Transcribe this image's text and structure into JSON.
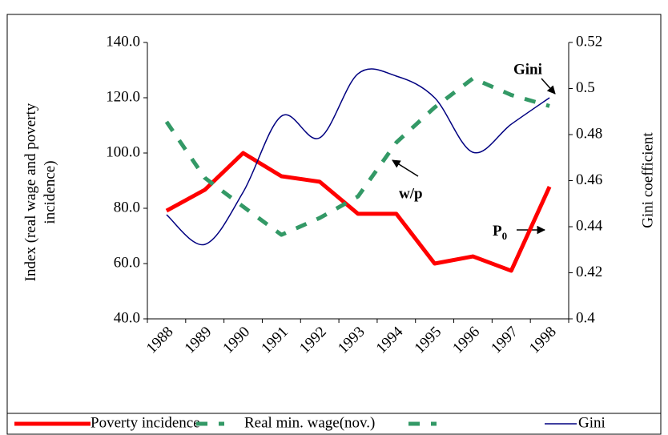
{
  "chart_data": {
    "type": "line",
    "categories": [
      "1988",
      "1989",
      "1990",
      "1991",
      "1992",
      "1993",
      "1994",
      "1995",
      "1996",
      "1997",
      "1998"
    ],
    "y_label": "Index (real wage and poverty incidence)",
    "y2_label": "Gini coefficient",
    "ylim": [
      40,
      140
    ],
    "yticks": [
      {
        "value": 40,
        "label": "40.0"
      },
      {
        "value": 60,
        "label": "60.0"
      },
      {
        "value": 80,
        "label": "80.0"
      },
      {
        "value": 100,
        "label": "100.0"
      },
      {
        "value": 120,
        "label": "120.0"
      },
      {
        "value": 140,
        "label": "140.0"
      }
    ],
    "y2lim": [
      0.4,
      0.52
    ],
    "y2ticks": [
      0.4,
      0.42,
      0.44,
      0.46,
      0.48,
      0.5,
      0.52
    ],
    "series": [
      {
        "name": "Poverty incidence",
        "color": "#ff0000",
        "style": "solid",
        "values": [
          79.1,
          86.7,
          100.0,
          91.6,
          89.6,
          78.0,
          78.0,
          60.0,
          62.6,
          57.4,
          87.8
        ]
      },
      {
        "name": "Real min. wage(nov.)",
        "color": "#339966",
        "style": "dashed",
        "values": [
          111.3,
          91.0,
          80.6,
          70.4,
          76.5,
          84.3,
          103.8,
          116.5,
          127.0,
          121.0,
          117.0
        ]
      },
      {
        "name": "Gini",
        "color": "#000080",
        "style": "smooth",
        "axis": "y2",
        "values": [
          0.4452,
          0.4323,
          0.455,
          0.488,
          0.4786,
          0.5064,
          0.5054,
          0.496,
          0.4723,
          0.4845,
          0.496
        ]
      }
    ],
    "annotations": [
      {
        "text": "Gini"
      },
      {
        "text": "w/p"
      },
      {
        "text": "P",
        "subscript": "0"
      }
    ]
  }
}
